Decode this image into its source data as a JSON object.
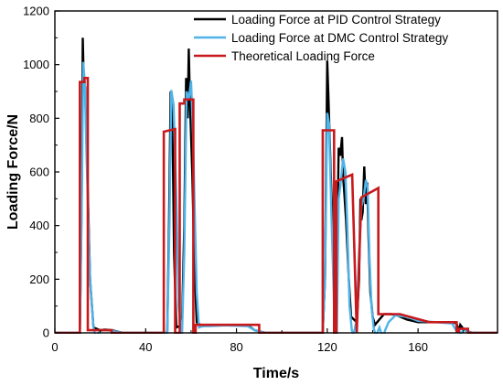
{
  "chart_data": {
    "type": "line",
    "xlabel": "Time/s",
    "ylabel": "Loading Force/N",
    "xlim": [
      0,
      195
    ],
    "ylim": [
      0,
      1200
    ],
    "xticks": [
      0,
      40,
      80,
      120,
      160
    ],
    "yticks": [
      0,
      200,
      400,
      600,
      800,
      1000,
      1200
    ],
    "grid": false,
    "legend_position": "top-right",
    "series": [
      {
        "name": "Loading Force at PID Control Strategy",
        "color": "#000000",
        "x": [
          0,
          11,
          11.8,
          12.3,
          12.8,
          13.3,
          14,
          15.5,
          17,
          20,
          22,
          25,
          30,
          48,
          49.5,
          50.3,
          51,
          51.8,
          52.5,
          53.5,
          56,
          57,
          57.8,
          58.5,
          59,
          59.5,
          60.5,
          61.5,
          62.5,
          65,
          68,
          75,
          85,
          88,
          93,
          118,
          119,
          119.6,
          120,
          120.6,
          121.5,
          123,
          124,
          124.6,
          125,
          125.7,
          126.5,
          127,
          127.5,
          128.3,
          129.5,
          130.5,
          133,
          134,
          134.6,
          135,
          135.6,
          136.3,
          137,
          137.6,
          138.2,
          139,
          140,
          141,
          143,
          145,
          148,
          150,
          155,
          160,
          175,
          177,
          178,
          178.6,
          179.5,
          181,
          184,
          195
        ],
        "y": [
          0,
          0,
          500,
          1100,
          900,
          920,
          700,
          200,
          20,
          10,
          12,
          10,
          0,
          0,
          0,
          400,
          900,
          780,
          300,
          20,
          30,
          400,
          950,
          800,
          1060,
          860,
          600,
          250,
          40,
          25,
          30,
          30,
          28,
          10,
          0,
          0,
          200,
          700,
          1015,
          860,
          600,
          250,
          100,
          450,
          690,
          660,
          730,
          580,
          520,
          420,
          200,
          60,
          40,
          200,
          500,
          420,
          450,
          620,
          480,
          560,
          350,
          150,
          60,
          30,
          50,
          70,
          70,
          68,
          50,
          40,
          40,
          35,
          5,
          30,
          20,
          8,
          0,
          0
        ]
      },
      {
        "name": "Loading Force at DMC Control Strategy",
        "color": "#4fb3e8",
        "x": [
          0,
          11,
          11.8,
          12.5,
          13.2,
          14,
          15.5,
          17,
          18,
          20,
          22,
          25,
          30,
          48,
          49.5,
          50.5,
          51.3,
          52.3,
          53.5,
          54.5,
          56,
          57,
          58,
          59,
          60,
          60.8,
          61.5,
          62.5,
          63.5,
          65,
          68,
          75,
          85,
          88,
          93,
          118,
          119,
          120,
          120.8,
          121.8,
          123,
          124.2,
          125,
          125.8,
          127,
          128,
          128.8,
          129.8,
          130.8,
          131.5,
          133,
          134,
          135,
          136,
          137,
          137.8,
          138.5,
          139.5,
          140.5,
          141.5,
          143,
          144.5,
          145.5,
          147,
          150,
          155,
          160,
          175,
          177,
          178,
          179,
          180,
          181.5,
          184,
          195
        ],
        "y": [
          0,
          0,
          450,
          1010,
          930,
          650,
          200,
          20,
          -15,
          8,
          10,
          8,
          0,
          0,
          0,
          400,
          905,
          850,
          500,
          100,
          -15,
          300,
          900,
          870,
          940,
          760,
          500,
          150,
          20,
          25,
          25,
          28,
          25,
          10,
          0,
          0,
          200,
          820,
          780,
          450,
          100,
          -10,
          500,
          550,
          650,
          600,
          400,
          100,
          10,
          -10,
          50,
          300,
          470,
          500,
          570,
          540,
          300,
          100,
          15,
          -10,
          20,
          -20,
          10,
          40,
          65,
          60,
          45,
          35,
          5,
          10,
          -5,
          15,
          5,
          0,
          0
        ]
      },
      {
        "name": "Theoretical Loading Force",
        "color": "#c8191c",
        "x": [
          0,
          9,
          9,
          11,
          11,
          13,
          13,
          14.5,
          14.5,
          20,
          25,
          25,
          48,
          48,
          53,
          53,
          55,
          55,
          57,
          57,
          61,
          61,
          62,
          62,
          85,
          90,
          90,
          118,
          118,
          123,
          123,
          124,
          124,
          131,
          131,
          133,
          133,
          135,
          135,
          142.5,
          142.5,
          147,
          152,
          165,
          177,
          177,
          178,
          178,
          182,
          182,
          195
        ],
        "y": [
          0,
          0,
          0,
          0,
          935,
          935,
          950,
          950,
          10,
          10,
          10,
          0,
          0,
          750,
          760,
          0,
          0,
          855,
          855,
          870,
          870,
          0,
          0,
          30,
          30,
          30,
          0,
          0,
          755,
          755,
          0,
          0,
          565,
          590,
          590,
          0,
          0,
          505,
          505,
          540,
          70,
          70,
          70,
          40,
          40,
          5,
          5,
          15,
          15,
          0,
          0
        ]
      }
    ]
  }
}
